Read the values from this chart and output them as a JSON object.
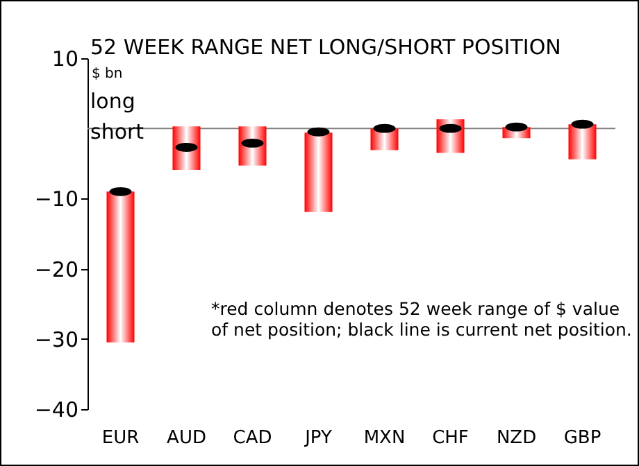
{
  "chart_data": {
    "type": "bar",
    "title": "52 WEEK RANGE NET LONG/SHORT POSITION",
    "ylabel": "$ bn",
    "categories": [
      "EUR",
      "AUD",
      "CAD",
      "JPY",
      "MXN",
      "CHF",
      "NZD",
      "GBP"
    ],
    "series": [
      {
        "type": "bar",
        "color": "#ff0000",
        "base": [
          -30.5,
          -5.9,
          -5.3,
          -11.9,
          -3.1,
          -3.5,
          -1.4,
          -4.4
        ],
        "values": [
          21.5,
          6.2,
          5.6,
          11.3,
          3.1,
          4.8,
          1.6,
          5.0
        ]
      },
      {
        "type": "scatter",
        "color": "#000000",
        "x": [
          "EUR",
          "AUD",
          "CAD",
          "JPY",
          "MXN",
          "CHF",
          "NZD",
          "GBP"
        ],
        "values": [
          -9.0,
          -2.7,
          -2.1,
          -0.5,
          0,
          0,
          0.2,
          0.6
        ]
      }
    ],
    "ylim": [
      -40,
      10
    ],
    "yticks": [
      -40,
      -30,
      -20,
      -10,
      10
    ],
    "ref_lines": [
      {
        "axis": "y",
        "value": 0,
        "color": "#808080"
      }
    ],
    "annotations": [
      "long",
      "short",
      "*red column denotes 52 week range of $ value of net position; black line is current net position."
    ]
  }
}
